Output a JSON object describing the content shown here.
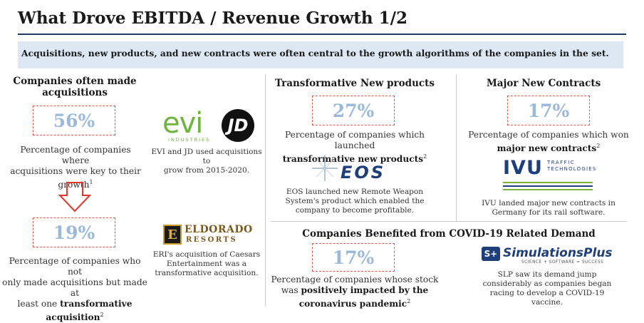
{
  "title": "What Drove EBITDA / Revenue Growth 1/2",
  "banner": "Acquisitions, new products, and new contracts were often central to the growth algorithms of the companies in the set.",
  "acquisitions": {
    "heading_line1": "Companies often made",
    "heading_line2": "acquisitions",
    "stat1": "56%",
    "desc1_line1": "Percentage of companies where",
    "desc1_line2": "acquisitions were key to their",
    "desc1_line3": "growth",
    "desc1_sup": "1",
    "logo_evi": "evi",
    "logo_evi_sub": "INDUSTRIES",
    "logo_jd": "JD",
    "evi_caption_line1": "EVI and JD used acquisitions to",
    "evi_caption_line2": "grow from 2015-2020.",
    "stat2": "19%",
    "desc2_line1": "Percentage of companies who not",
    "desc2_line2": "only made acquisitions but made at",
    "desc2_line3": "least one ",
    "desc2_bold1": "transformative",
    "desc2_bold2": "acquisition",
    "desc2_sup": "2",
    "logo_eldorado_letter": "E",
    "logo_eldorado_name": "ELDORADO",
    "logo_eldorado_sub": "RESORTS",
    "eri_caption_line1": "ERI's acquisition of Caesars",
    "eri_caption_line2": "Entertainment was a",
    "eri_caption_line3": "transformative acquisition."
  },
  "products": {
    "heading": "Transformative New products",
    "stat": "27%",
    "desc_line1": "Percentage of companies which launched",
    "desc_bold": "transformative new products",
    "desc_sup": "2",
    "logo_eos": "EOS",
    "caption_line1": "EOS launched new Remote Weapon",
    "caption_line2": "System's product which enabled the",
    "caption_line3": "company to become profitable."
  },
  "contracts": {
    "heading": "Major New Contracts",
    "stat": "17%",
    "desc_line1": "Percentage of companies which won",
    "desc_bold": "major new contracts",
    "desc_sup": "2",
    "logo_ivu": "IVU",
    "logo_ivu_sub1": "TRAFFIC",
    "logo_ivu_sub2": "TECHNOLOGIES",
    "caption_line1": "IVU landed major new contracts in",
    "caption_line2": "Germany for its rail software."
  },
  "covid": {
    "heading": "Companies Benefited from COVID-19 Related Demand",
    "stat": "17%",
    "desc_line1": "Percentage of companies whose stock",
    "desc_line2a": "was ",
    "desc_bold1": "positively impacted by the",
    "desc_bold2": "coronavirus pandemic",
    "desc_sup": "2",
    "logo_slp_mark": "S+",
    "logo_slp_name": "SimulationsPlus",
    "logo_slp_tag": "SCIENCE + SOFTWARE = SUCCESS",
    "caption_line1": "SLP saw its demand jump",
    "caption_line2": "considerably as companies began",
    "caption_line3": "racing to develop a COVID-19",
    "caption_line4": "vaccine."
  },
  "colors": {
    "title_rule": "#1f3864",
    "banner_bg": "#dde8f3",
    "stat_text": "#9cbad8",
    "stat_border": "#e15b4c",
    "arrow": "#e03a2f"
  }
}
